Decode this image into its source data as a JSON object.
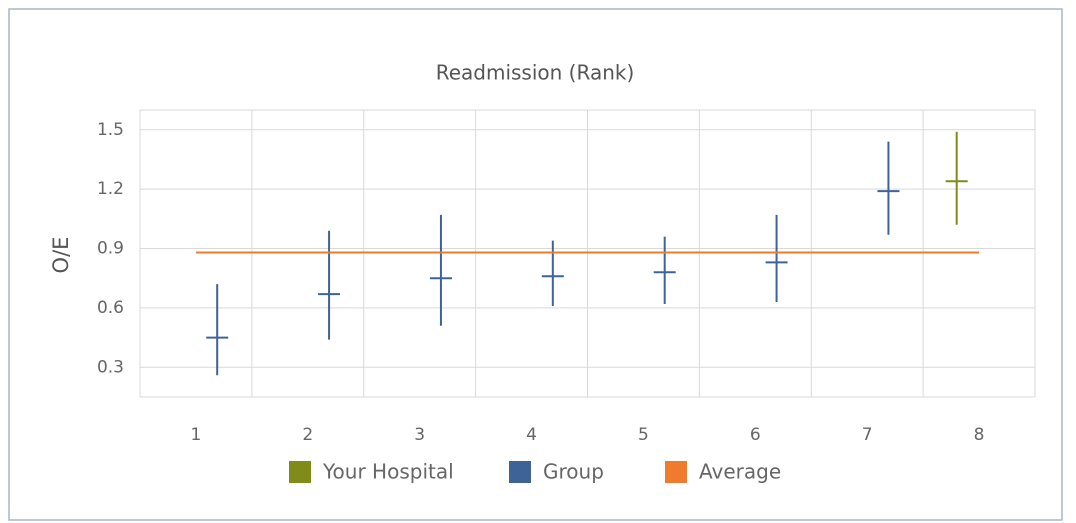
{
  "chart_data": {
    "type": "errorbar",
    "title": "Readmission (Rank)",
    "y_label": "O/E",
    "categories": [
      "1",
      "2",
      "3",
      "4",
      "5",
      "6",
      "7",
      "8"
    ],
    "ylim": [
      0.15,
      1.6
    ],
    "yticks": [
      0.3,
      0.6,
      0.9,
      1.2,
      1.5
    ],
    "grid": true,
    "series": [
      {
        "name": "Your Hospital",
        "color": "#7f8c1a",
        "values": [
          null,
          null,
          null,
          null,
          null,
          null,
          null,
          1.24
        ],
        "low": [
          null,
          null,
          null,
          null,
          null,
          null,
          null,
          1.02
        ],
        "high": [
          null,
          null,
          null,
          null,
          null,
          null,
          null,
          1.49
        ]
      },
      {
        "name": "Group",
        "color": "#3e6396",
        "values": [
          0.45,
          0.67,
          0.75,
          0.76,
          0.78,
          0.83,
          1.19,
          null
        ],
        "low": [
          0.26,
          0.44,
          0.51,
          0.61,
          0.62,
          0.63,
          0.97,
          null
        ],
        "high": [
          0.72,
          0.99,
          1.07,
          0.94,
          0.96,
          1.07,
          1.44,
          null
        ]
      },
      {
        "name": "Average",
        "color": "#f07a2e",
        "kind": "line",
        "values": [
          0.88,
          0.88,
          0.88,
          0.88,
          0.88,
          0.88,
          0.88,
          0.88
        ]
      }
    ]
  }
}
